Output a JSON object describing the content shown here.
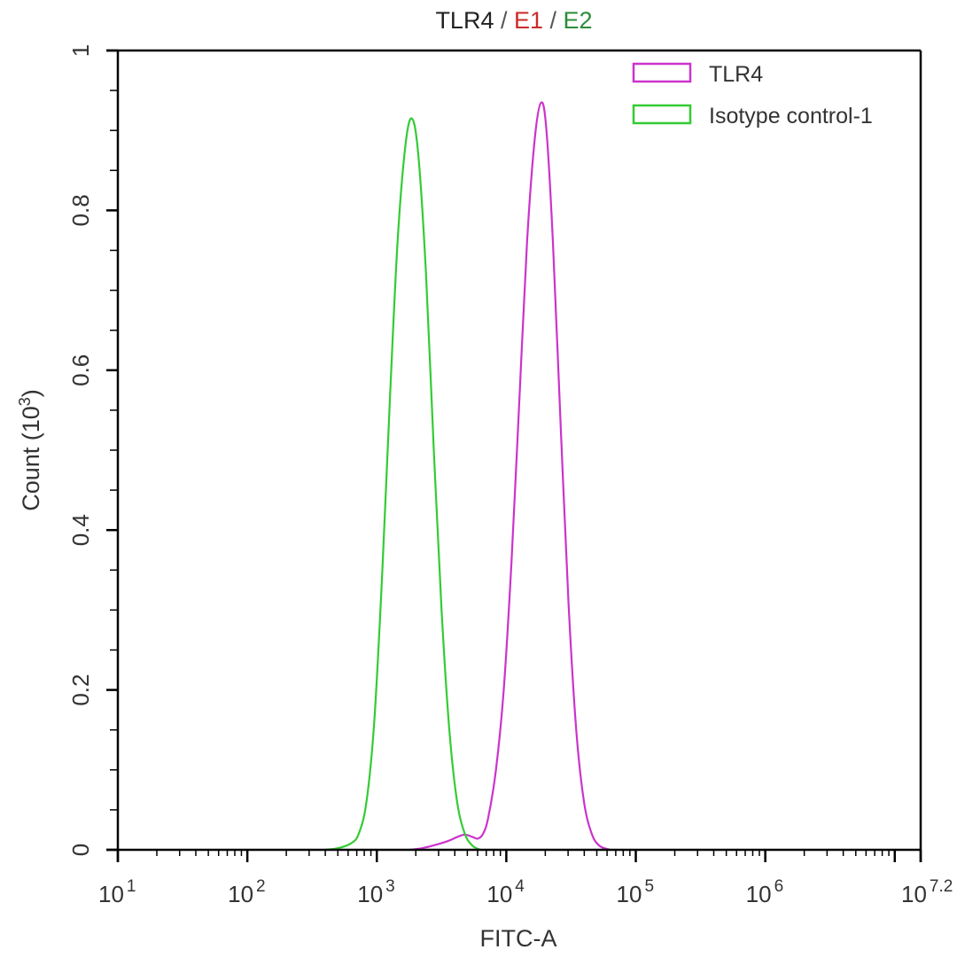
{
  "chart_data": {
    "type": "line",
    "title": {
      "parts": [
        {
          "text": "TLR4",
          "color": "#222222"
        },
        {
          "text": " / ",
          "color": "#555555"
        },
        {
          "text": "E1",
          "color": "#cc2a2a"
        },
        {
          "text": " / ",
          "color": "#555555"
        },
        {
          "text": "E2",
          "color": "#2e8b3a"
        }
      ]
    },
    "xlabel": "FITC-A",
    "ylabel": "Count (10³)",
    "ylabel_parts": {
      "main": "Count  (10",
      "sup": "3",
      "close": ")"
    },
    "xscale": "log",
    "xlim_log10": [
      1,
      7.2
    ],
    "ylim": [
      0,
      1
    ],
    "x_ticks": [
      {
        "base": "10",
        "exp": "1",
        "log": 1
      },
      {
        "base": "10",
        "exp": "2",
        "log": 2
      },
      {
        "base": "10",
        "exp": "3",
        "log": 3
      },
      {
        "base": "10",
        "exp": "4",
        "log": 4
      },
      {
        "base": "10",
        "exp": "5",
        "log": 5
      },
      {
        "base": "10",
        "exp": "6",
        "log": 6
      },
      {
        "base": "10",
        "exp": "7.2",
        "log": 7.2
      }
    ],
    "y_ticks": [
      {
        "label": "0",
        "value": 0
      },
      {
        "label": "0.2",
        "value": 0.2
      },
      {
        "label": "0.4",
        "value": 0.4
      },
      {
        "label": "0.6",
        "value": 0.6
      },
      {
        "label": "0.8",
        "value": 0.8
      },
      {
        "label": "1",
        "value": 1
      }
    ],
    "grid": false,
    "legend_position": "top-right",
    "series": [
      {
        "name": "TLR4",
        "color": "#cc33cc",
        "points_log10x_y": [
          [
            3.25,
            0.0
          ],
          [
            3.35,
            0.002
          ],
          [
            3.45,
            0.006
          ],
          [
            3.55,
            0.011
          ],
          [
            3.62,
            0.016
          ],
          [
            3.68,
            0.019
          ],
          [
            3.74,
            0.016
          ],
          [
            3.78,
            0.014
          ],
          [
            3.82,
            0.02
          ],
          [
            3.86,
            0.04
          ],
          [
            3.92,
            0.1
          ],
          [
            3.98,
            0.2
          ],
          [
            4.04,
            0.36
          ],
          [
            4.1,
            0.56
          ],
          [
            4.16,
            0.76
          ],
          [
            4.22,
            0.89
          ],
          [
            4.27,
            0.935
          ],
          [
            4.31,
            0.9
          ],
          [
            4.36,
            0.76
          ],
          [
            4.42,
            0.53
          ],
          [
            4.48,
            0.31
          ],
          [
            4.54,
            0.15
          ],
          [
            4.6,
            0.06
          ],
          [
            4.66,
            0.02
          ],
          [
            4.72,
            0.005
          ],
          [
            4.8,
            0.0
          ]
        ]
      },
      {
        "name": "Isotype control-1",
        "color": "#33cc33",
        "points_log10x_y": [
          [
            2.6,
            0.0
          ],
          [
            2.7,
            0.002
          ],
          [
            2.8,
            0.008
          ],
          [
            2.86,
            0.02
          ],
          [
            2.92,
            0.06
          ],
          [
            2.98,
            0.16
          ],
          [
            3.04,
            0.34
          ],
          [
            3.1,
            0.56
          ],
          [
            3.16,
            0.76
          ],
          [
            3.22,
            0.88
          ],
          [
            3.27,
            0.915
          ],
          [
            3.32,
            0.87
          ],
          [
            3.38,
            0.72
          ],
          [
            3.44,
            0.5
          ],
          [
            3.5,
            0.3
          ],
          [
            3.56,
            0.15
          ],
          [
            3.62,
            0.06
          ],
          [
            3.68,
            0.02
          ],
          [
            3.74,
            0.005
          ],
          [
            3.8,
            0.0
          ]
        ]
      }
    ],
    "annotations": []
  },
  "legend": {
    "items": [
      {
        "label": "TLR4",
        "color": "#cc33cc"
      },
      {
        "label": "Isotype control-1",
        "color": "#33cc33"
      }
    ]
  }
}
